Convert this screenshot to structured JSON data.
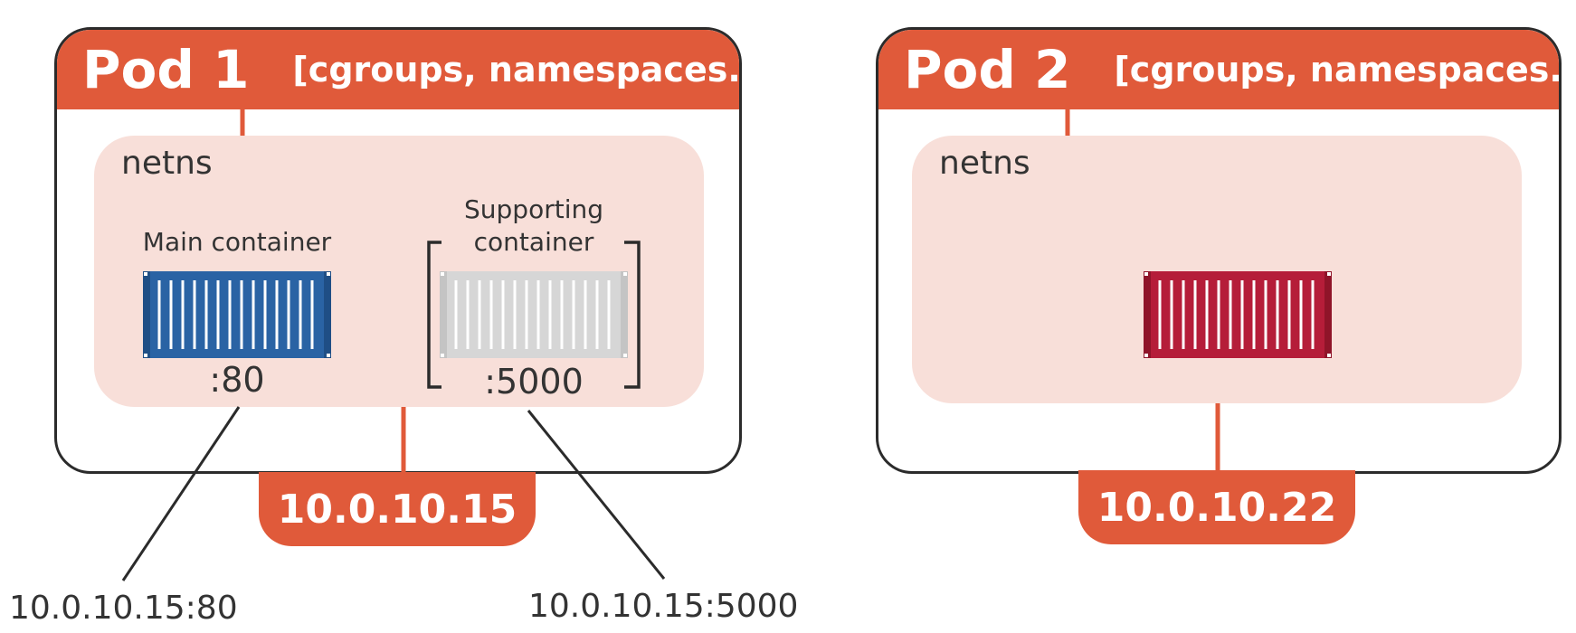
{
  "colors": {
    "accent": "#e05a3a",
    "netns_fill": "#f8dfd9",
    "outline": "#2b2b2b",
    "main_container": "#2a63a4",
    "supporting_container": "#d6d6d6",
    "pod2_container": "#b51d39"
  },
  "pods": [
    {
      "name": "Pod 1",
      "description": "[cgroups, namespaces...]",
      "netns_label": "netns",
      "ip": "10.0.10.15",
      "containers": [
        {
          "label": "Main container",
          "port": ":80",
          "icon": "shipping-container-icon"
        },
        {
          "label_line1": "Supporting",
          "label_line2": "container",
          "port": ":5000",
          "icon": "shipping-container-icon"
        }
      ]
    },
    {
      "name": "Pod 2",
      "description": "[cgroups, namespaces...]",
      "netns_label": "netns",
      "ip": "10.0.10.22",
      "containers": [
        {
          "icon": "shipping-container-icon"
        }
      ]
    }
  ],
  "endpoints": [
    {
      "label": "10.0.10.15:80"
    },
    {
      "label": "10.0.10.15:5000"
    }
  ]
}
